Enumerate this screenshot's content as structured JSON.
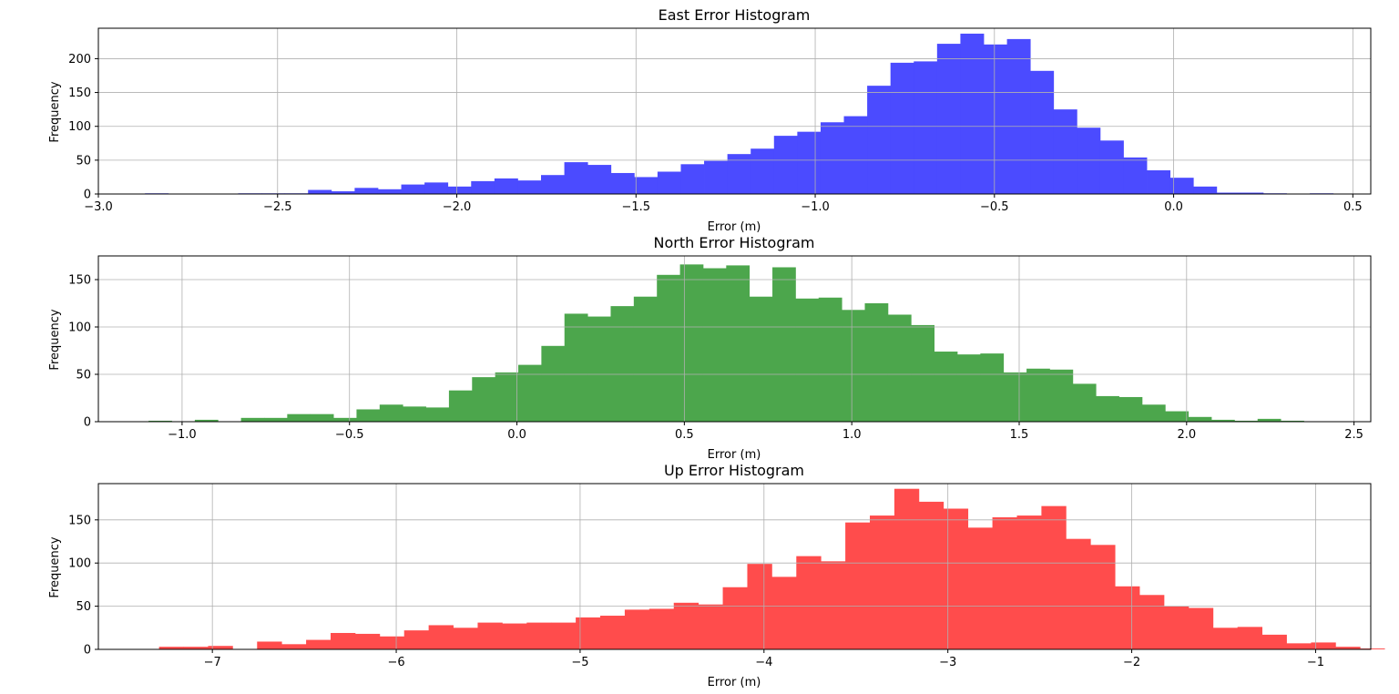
{
  "chart_data": [
    {
      "type": "bar",
      "title": "East Error Histogram",
      "xlabel": "Error (m)",
      "ylabel": "Frequency",
      "color": "#4b4bff",
      "grid": true,
      "xlim": [
        -3.0,
        0.55
      ],
      "ylim": [
        0,
        245
      ],
      "xticks": [
        -3.0,
        -2.5,
        -2.0,
        -1.5,
        -1.0,
        -0.5,
        0.0,
        0.5
      ],
      "xtick_labels": [
        "−3.0",
        "−2.5",
        "−2.0",
        "−1.5",
        "−1.0",
        "−0.5",
        "0.0",
        "0.5"
      ],
      "yticks": [
        0,
        50,
        100,
        150,
        200
      ],
      "ytick_labels": [
        "0",
        "50",
        "100",
        "150",
        "200"
      ],
      "bin_start": -2.87,
      "bin_width": 0.065,
      "values": [
        1,
        0,
        0,
        0,
        1,
        1,
        1,
        6,
        4,
        9,
        7,
        14,
        17,
        11,
        19,
        23,
        20,
        28,
        47,
        43,
        31,
        25,
        33,
        44,
        49,
        59,
        67,
        86,
        92,
        106,
        115,
        160,
        194,
        196,
        222,
        237,
        221,
        229,
        182,
        125,
        98,
        79,
        54,
        35,
        24,
        11,
        2,
        2,
        1,
        0,
        1
      ]
    },
    {
      "type": "bar",
      "title": "North Error Histogram",
      "xlabel": "Error (m)",
      "ylabel": "Frequency",
      "color": "#4ca64c",
      "grid": true,
      "xlim": [
        -1.25,
        2.55
      ],
      "ylim": [
        0,
        175
      ],
      "xticks": [
        -1.0,
        -0.5,
        0.0,
        0.5,
        1.0,
        1.5,
        2.0,
        2.5
      ],
      "xtick_labels": [
        "−1.0",
        "−0.5",
        "0.0",
        "0.5",
        "1.0",
        "1.5",
        "2.0",
        "2.5"
      ],
      "yticks": [
        0,
        50,
        100,
        150
      ],
      "ytick_labels": [
        "0",
        "50",
        "100",
        "150"
      ],
      "bin_start": -1.1,
      "bin_width": 0.069,
      "values": [
        1,
        0,
        2,
        0,
        4,
        4,
        8,
        8,
        4,
        13,
        18,
        16,
        15,
        33,
        47,
        52,
        60,
        80,
        114,
        111,
        122,
        132,
        155,
        166,
        162,
        165,
        132,
        163,
        130,
        131,
        118,
        125,
        113,
        102,
        74,
        71,
        72,
        52,
        56,
        55,
        40,
        27,
        26,
        18,
        11,
        5,
        2,
        1,
        3,
        1
      ]
    },
    {
      "type": "bar",
      "title": "Up Error Histogram",
      "xlabel": "Error (m)",
      "ylabel": "Frequency",
      "color": "#ff4c4c",
      "grid": true,
      "xlim": [
        -7.62,
        -0.7
      ],
      "ylim": [
        0,
        192
      ],
      "xticks": [
        -7,
        -6,
        -5,
        -4,
        -3,
        -2,
        -1
      ],
      "xtick_labels": [
        "−7",
        "−6",
        "−5",
        "−4",
        "−3",
        "−2",
        "−1"
      ],
      "yticks": [
        0,
        50,
        100,
        150
      ],
      "ytick_labels": [
        "0",
        "50",
        "100",
        "150"
      ],
      "bin_start": -7.29,
      "bin_width": 0.1333,
      "values": [
        3,
        3,
        4,
        0,
        9,
        6,
        11,
        19,
        18,
        15,
        22,
        28,
        25,
        31,
        30,
        31,
        31,
        37,
        39,
        46,
        47,
        54,
        52,
        72,
        99,
        84,
        108,
        102,
        147,
        155,
        186,
        171,
        163,
        141,
        153,
        155,
        166,
        128,
        121,
        73,
        63,
        50,
        48,
        25,
        26,
        17,
        7,
        8,
        3,
        1
      ]
    }
  ]
}
